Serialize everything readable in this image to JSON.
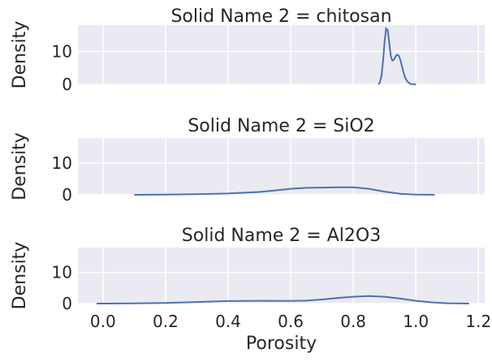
{
  "chart_data": [
    {
      "type": "line",
      "subtype": "kde",
      "title": "Solid Name 2 = chitosan",
      "ylabel": "Density",
      "xlim": [
        -0.08,
        1.22
      ],
      "ylim": [
        0,
        18
      ],
      "yticks": [
        0,
        10
      ],
      "x": [
        0.88,
        0.885,
        0.89,
        0.895,
        0.9,
        0.905,
        0.91,
        0.915,
        0.92,
        0.925,
        0.93,
        0.935,
        0.94,
        0.945,
        0.95,
        0.955,
        0.96,
        0.965,
        0.97,
        0.975,
        0.98,
        0.985,
        0.99,
        0.995,
        1.0
      ],
      "y": [
        0.0,
        0.6,
        2.5,
        7.0,
        13.0,
        17.0,
        16.5,
        12.5,
        8.5,
        7.2,
        7.5,
        8.5,
        9.0,
        8.8,
        7.6,
        5.8,
        3.8,
        2.3,
        1.3,
        0.7,
        0.3,
        0.1,
        0.05,
        0.02,
        0.0
      ]
    },
    {
      "type": "line",
      "subtype": "kde",
      "title": "Solid Name 2 = SiO2",
      "ylabel": "Density",
      "xlim": [
        -0.08,
        1.22
      ],
      "ylim": [
        0,
        18
      ],
      "yticks": [
        0,
        10
      ],
      "x": [
        0.1,
        0.2,
        0.3,
        0.4,
        0.5,
        0.55,
        0.6,
        0.65,
        0.7,
        0.75,
        0.8,
        0.85,
        0.9,
        0.95,
        1.0,
        1.06
      ],
      "y": [
        0.0,
        0.05,
        0.2,
        0.4,
        0.9,
        1.4,
        1.9,
        2.2,
        2.3,
        2.4,
        2.4,
        1.9,
        1.0,
        0.3,
        0.05,
        0.0
      ]
    },
    {
      "type": "line",
      "subtype": "kde",
      "title": "Solid Name 2 = Al2O3",
      "ylabel": "Density",
      "xlabel": "Porosity",
      "xlim": [
        -0.08,
        1.22
      ],
      "ylim": [
        0,
        18
      ],
      "yticks": [
        0,
        10
      ],
      "xticks": [
        0.0,
        0.2,
        0.4,
        0.6,
        0.8,
        1.0,
        1.2
      ],
      "xticklabels": [
        "0.0",
        "0.2",
        "0.4",
        "0.6",
        "0.8",
        "1.0",
        "1.2"
      ],
      "x": [
        -0.02,
        0.1,
        0.2,
        0.3,
        0.4,
        0.5,
        0.6,
        0.65,
        0.7,
        0.75,
        0.8,
        0.85,
        0.9,
        0.95,
        1.0,
        1.05,
        1.1,
        1.17
      ],
      "y": [
        0.0,
        0.05,
        0.2,
        0.5,
        0.8,
        0.9,
        0.85,
        0.95,
        1.3,
        1.8,
        2.2,
        2.4,
        2.2,
        1.6,
        0.9,
        0.4,
        0.1,
        0.0
      ]
    }
  ]
}
